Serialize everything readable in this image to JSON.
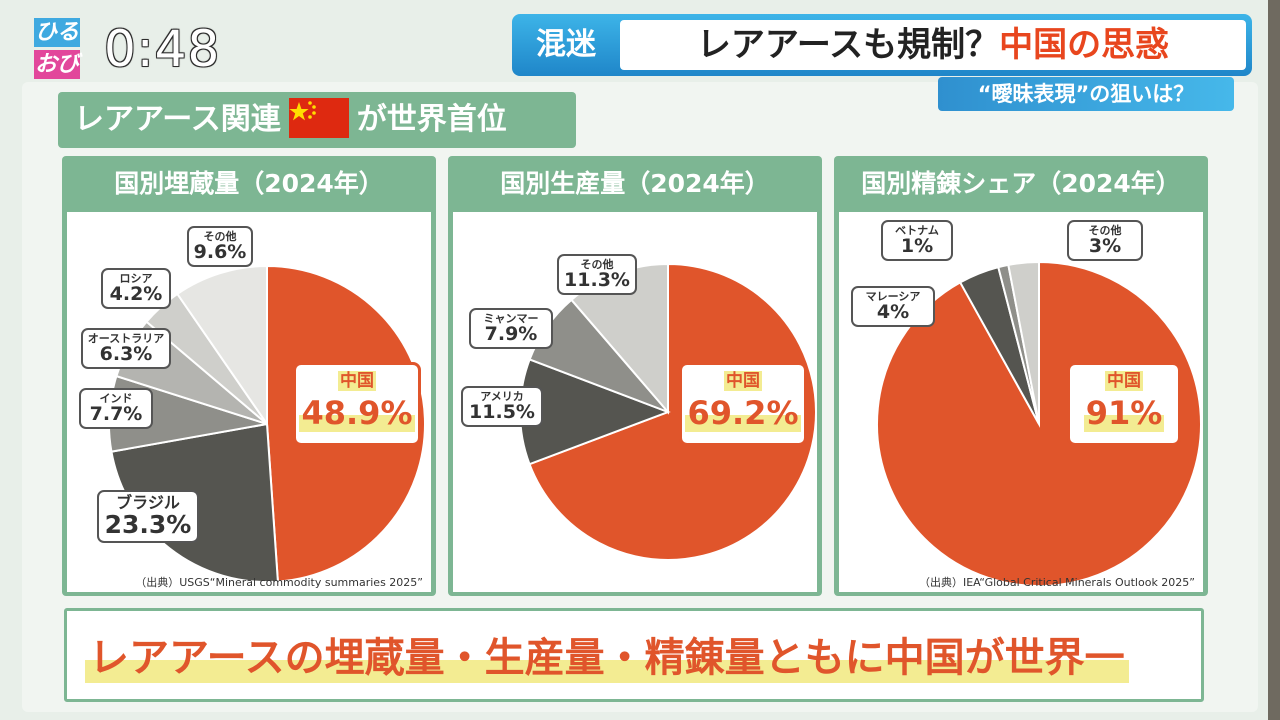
{
  "overlay": {
    "logo_top": "ひる",
    "logo_bottom": "おび",
    "clock": "0:48",
    "tag": "混迷",
    "headline_main": "レアアースも規制？",
    "headline_accent": "中国の思惑",
    "subheadline": "“曖昧表現”の狙いは？"
  },
  "board": {
    "title_before_flag": "レアアース関連",
    "title_after_flag": "が世界首位",
    "conclusion": "レアアースの埋蔵量・生産量・精錬量ともに中国が世界一"
  },
  "colors": {
    "china": "#e0552b",
    "accent_green": "#7db693",
    "highlight_yellow": "#f3ec92"
  },
  "chart_data": [
    {
      "type": "pie",
      "title": "国別埋蔵量（2024年）",
      "source": "（出典）USGS“Mineral commodity summaries 2025”",
      "slices": [
        {
          "label": "中国",
          "value": 48.9,
          "display": "48.9%",
          "color": "#e0552b"
        },
        {
          "label": "ブラジル",
          "value": 23.3,
          "display": "23.3%",
          "color": "#555550"
        },
        {
          "label": "インド",
          "value": 7.7,
          "display": "7.7%",
          "color": "#8f8f8a"
        },
        {
          "label": "オーストラリア",
          "value": 6.3,
          "display": "6.3%",
          "color": "#b4b4b0"
        },
        {
          "label": "ロシア",
          "value": 4.2,
          "display": "4.2%",
          "color": "#cfcfcb"
        },
        {
          "label": "その他",
          "value": 9.6,
          "display": "9.6%",
          "color": "#e6e6e3"
        }
      ]
    },
    {
      "type": "pie",
      "title": "国別生産量（2024年）",
      "source": "",
      "slices": [
        {
          "label": "中国",
          "value": 69.2,
          "display": "69.2%",
          "color": "#e0552b"
        },
        {
          "label": "アメリカ",
          "value": 11.5,
          "display": "11.5%",
          "color": "#555550"
        },
        {
          "label": "ミャンマー",
          "value": 7.9,
          "display": "7.9%",
          "color": "#8f8f8a"
        },
        {
          "label": "その他",
          "value": 11.3,
          "display": "11.3%",
          "color": "#cfcfcb"
        }
      ]
    },
    {
      "type": "pie",
      "title": "国別精錬シェア（2024年）",
      "source": "（出典）IEA“Global Critical Minerals Outlook 2025”",
      "slices": [
        {
          "label": "中国",
          "value": 91,
          "display": "91%",
          "color": "#e0552b"
        },
        {
          "label": "マレーシア",
          "value": 4,
          "display": "4%",
          "color": "#555550"
        },
        {
          "label": "ベトナム",
          "value": 1,
          "display": "1%",
          "color": "#8f8f8a"
        },
        {
          "label": "その他",
          "value": 3,
          "display": "3%",
          "color": "#cfcfcb"
        }
      ]
    }
  ]
}
